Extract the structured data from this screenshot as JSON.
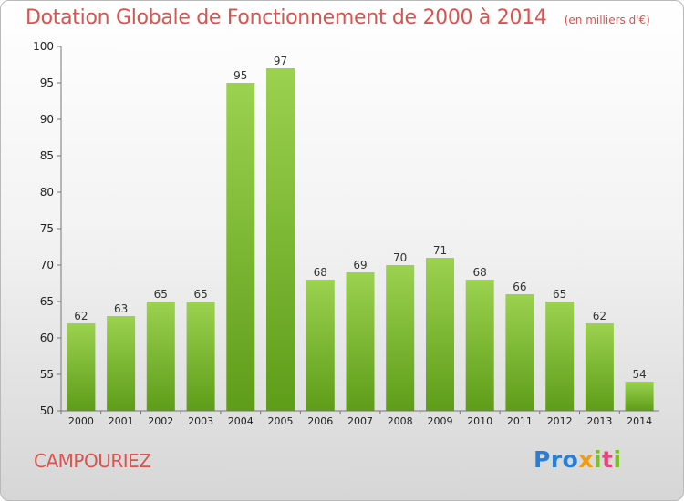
{
  "chart_data": {
    "type": "bar",
    "title": "Dotation Globale de Fonctionnement de 2000 à 2014",
    "subtitle": "(en milliers d'€)",
    "categories": [
      "2000",
      "2001",
      "2002",
      "2003",
      "2004",
      "2005",
      "2006",
      "2007",
      "2008",
      "2009",
      "2010",
      "2011",
      "2012",
      "2013",
      "2014"
    ],
    "values": [
      62,
      63,
      65,
      65,
      95,
      97,
      68,
      69,
      70,
      71,
      68,
      66,
      65,
      62,
      54
    ],
    "ylim": [
      50,
      100
    ],
    "yticks": [
      50,
      55,
      60,
      65,
      70,
      75,
      80,
      85,
      90,
      95,
      100
    ],
    "xlabel": "",
    "ylabel": "",
    "grid": false,
    "bar_color": "#7cc036"
  },
  "footer": {
    "town": "CAMPOURIEZ",
    "logo": {
      "p1": "Pro",
      "p2": "x",
      "p3": "i",
      "p4": "t",
      "p5": "i"
    }
  },
  "colors": {
    "title": "#d9534f",
    "bar_light": "#9bd24f",
    "bar_dark": "#5e9d19"
  }
}
